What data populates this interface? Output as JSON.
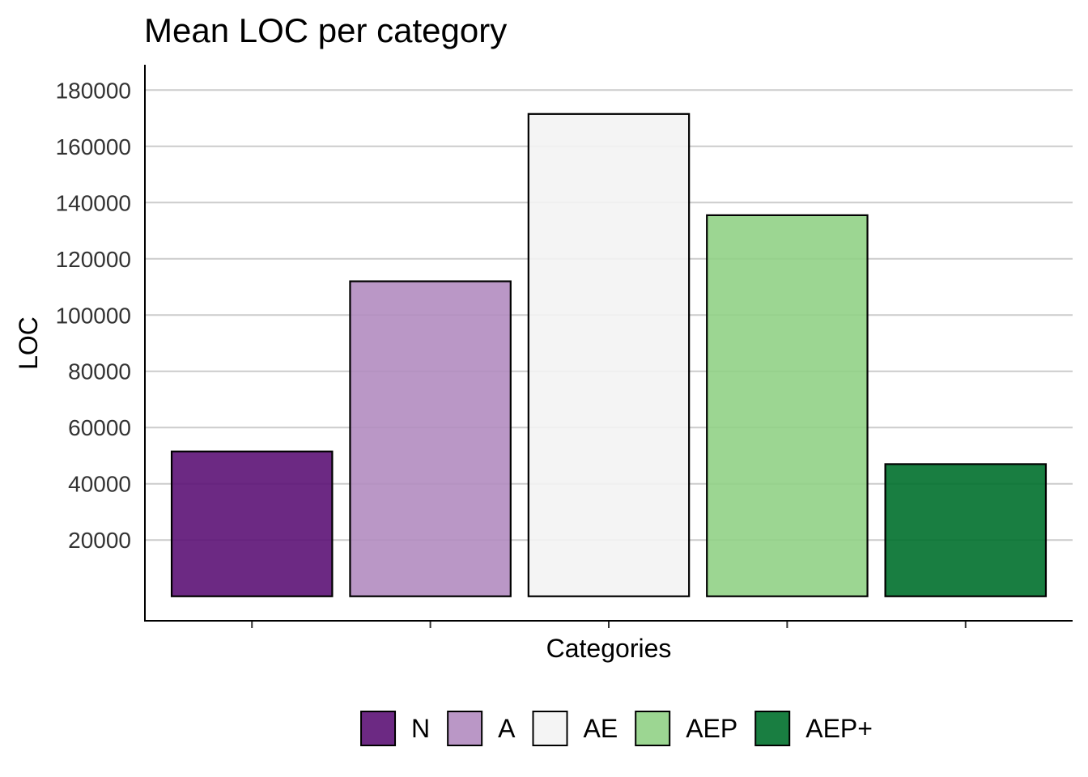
{
  "chart_data": {
    "type": "bar",
    "title": "Mean LOC per category",
    "xlabel": "Categories",
    "ylabel": "LOC",
    "categories": [
      "N",
      "A",
      "AE",
      "AEP",
      "AEP+"
    ],
    "values": [
      51500,
      112000,
      171500,
      135500,
      47000
    ],
    "colors": [
      "#5c1276",
      "#b28cc0",
      "#f3f3f3",
      "#91d186",
      "#00702c"
    ],
    "ylim": [
      -9000,
      189000
    ],
    "yticks": [
      20000,
      40000,
      60000,
      80000,
      100000,
      120000,
      140000,
      160000,
      180000
    ],
    "x_tick_labels_shown": false,
    "grid": "horizontal major",
    "legend": {
      "position": "bottom",
      "entries": [
        "N",
        "A",
        "AE",
        "AEP",
        "AEP+"
      ]
    }
  }
}
